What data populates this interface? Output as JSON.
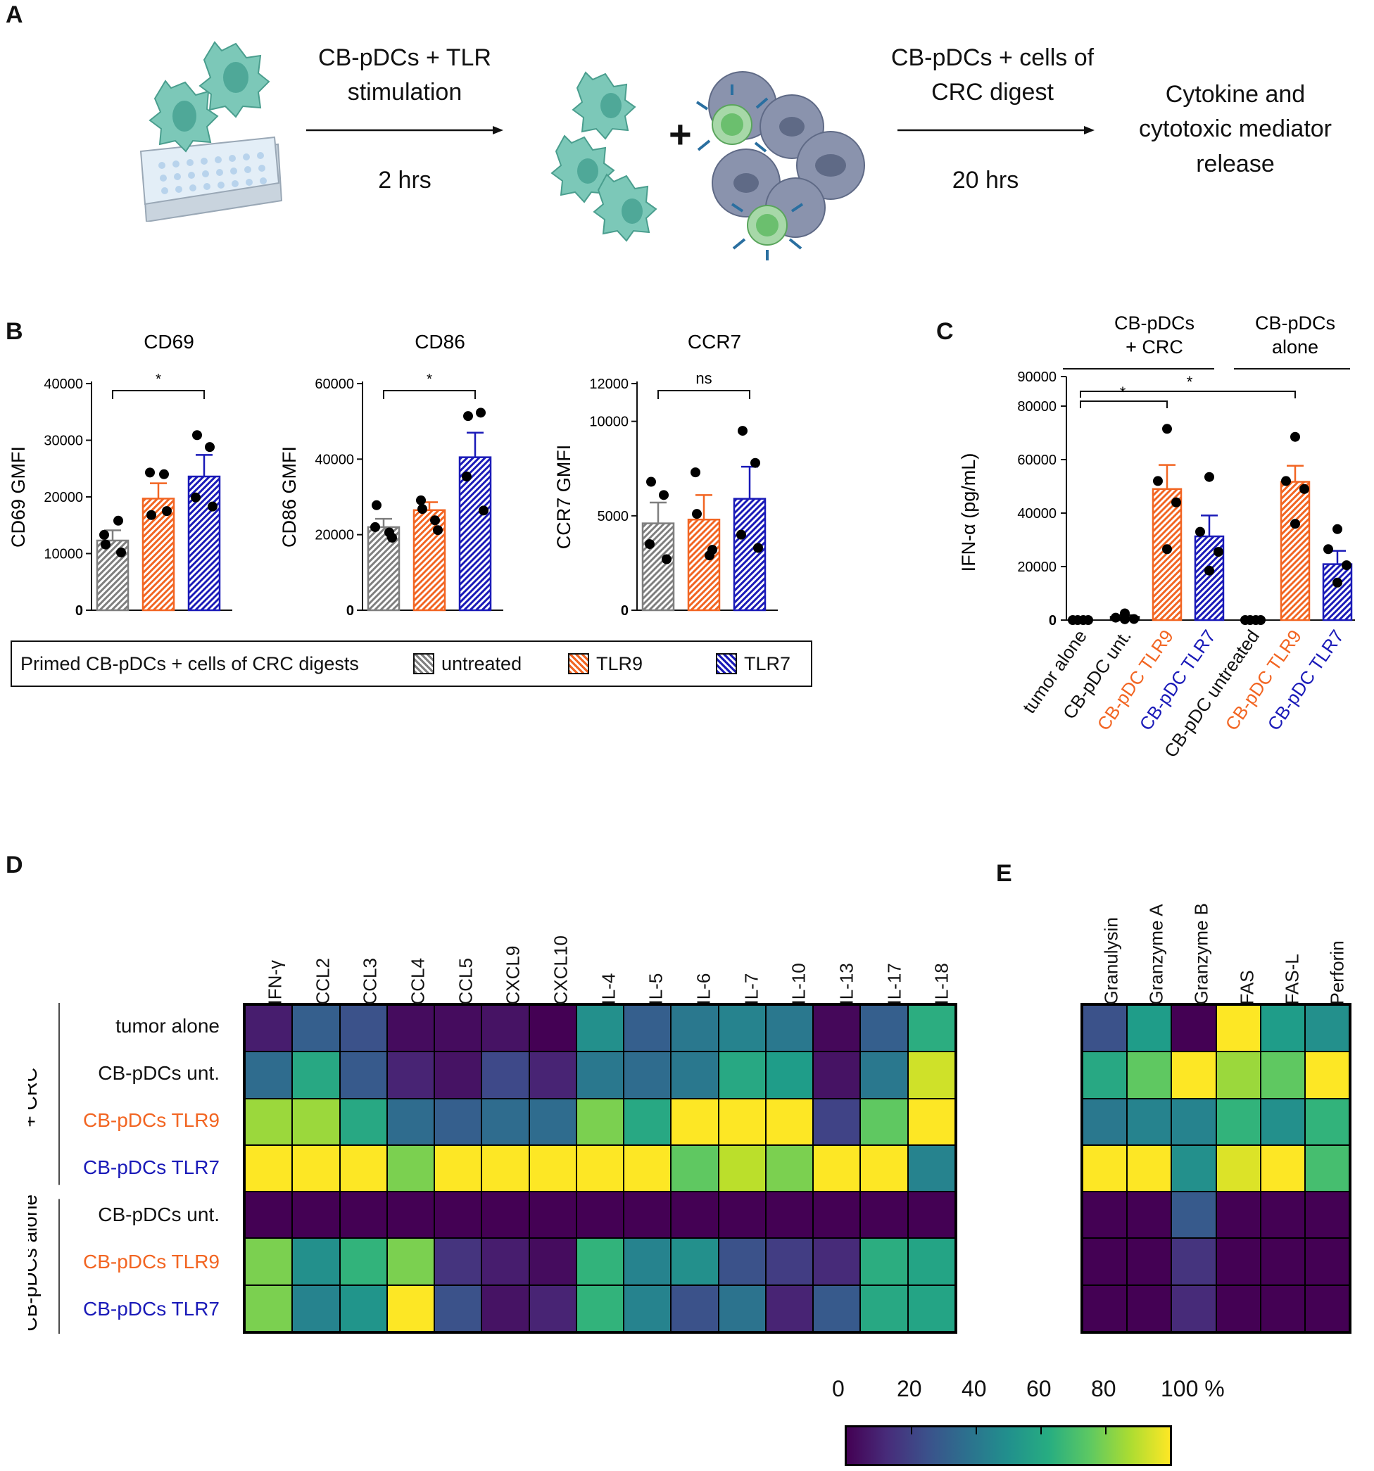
{
  "panels": {
    "a": "A",
    "b": "B",
    "c": "C",
    "d": "D",
    "e": "E"
  },
  "colors": {
    "untreated": "#7f7f7f",
    "tlr9": "#f26522",
    "tlr7": "#1a1ab8"
  },
  "flow": {
    "step1_label": "CB-pDCs + TLR stimulation",
    "step1_time": "2 hrs",
    "step2_label": "CB-pDCs + cells of CRC digest",
    "step2_time": "20 hrs",
    "result": "Cytokine and cytotoxic mediator release",
    "plus": "+"
  },
  "chart_data": [
    {
      "id": "cd69",
      "type": "bar",
      "title": "CD69",
      "ylabel": "CD69 GMFI",
      "categories": [
        "untreated",
        "TLR9",
        "TLR7"
      ],
      "values": [
        12300,
        19700,
        23600
      ],
      "errors": [
        1800,
        2700,
        3800
      ],
      "points": [
        [
          11600,
          15800,
          13300,
          10200
        ],
        [
          16800,
          24000,
          24300,
          17500
        ],
        [
          30900,
          28800,
          19900,
          18300
        ]
      ],
      "ylim": [
        0,
        40000
      ],
      "yticks": [
        "0",
        "10000",
        "20000",
        "30000",
        "40000"
      ],
      "significance": {
        "from": 0,
        "to": 2,
        "label": "*"
      }
    },
    {
      "id": "cd86",
      "type": "bar",
      "title": "CD86",
      "ylabel": "CD86 GMFI",
      "categories": [
        "untreated",
        "TLR9",
        "TLR7"
      ],
      "values": [
        22000,
        26500,
        40500
      ],
      "errors": [
        2200,
        2100,
        6500
      ],
      "points": [
        [
          27800,
          20600,
          22000,
          19200
        ],
        [
          26800,
          23800,
          29100,
          21200
        ],
        [
          51400,
          52300,
          35400,
          26400
        ]
      ],
      "ylim": [
        0,
        60000
      ],
      "yticks": [
        "0",
        "20000",
        "40000",
        "60000"
      ],
      "significance": {
        "from": 0,
        "to": 2,
        "label": "*"
      }
    },
    {
      "id": "ccr7",
      "type": "bar",
      "title": "CCR7",
      "ylabel": "CCR7 GMFI",
      "categories": [
        "untreated",
        "TLR9",
        "TLR7"
      ],
      "values": [
        4600,
        4800,
        5900
      ],
      "errors": [
        1100,
        1300,
        1700
      ],
      "points": [
        [
          6800,
          6100,
          3500,
          2700
        ],
        [
          5100,
          2900,
          7300,
          3200
        ],
        [
          9500,
          7800,
          4000,
          3300
        ]
      ],
      "ylim": [
        0,
        12000
      ],
      "yticks": [
        "0",
        "5000",
        "10000",
        "12000"
      ],
      "significance": {
        "from": 0,
        "to": 2,
        "label": "ns"
      }
    },
    {
      "id": "ifna",
      "type": "bar",
      "title": "",
      "ylabel": "IFN-α (pg/mL)",
      "categories": [
        "tumor alone",
        "CB-pDC unt.",
        "CB-pDC TLR9",
        "CB-pDC TLR7",
        "CB-pDC untreated",
        "CB-pDC TLR9",
        "CB-pDC TLR7"
      ],
      "category_colors": [
        "#111111",
        "#111111",
        "#f26522",
        "#1a1ab8",
        "#111111",
        "#f26522",
        "#1a1ab8"
      ],
      "values": [
        0,
        1200,
        49000,
        31300,
        0,
        51700,
        20900
      ],
      "errors": [
        0,
        600,
        9000,
        7800,
        0,
        6000,
        5000
      ],
      "points": [
        [
          0,
          0,
          0,
          0
        ],
        [
          2500,
          900,
          400,
          300
        ],
        [
          71500,
          52000,
          44000,
          26500
        ],
        [
          53500,
          33000,
          25500,
          18500
        ],
        [
          0,
          0,
          0,
          0
        ],
        [
          68500,
          52000,
          49000,
          36000
        ],
        [
          34000,
          26500,
          20500,
          14000
        ]
      ],
      "ylim": [
        0,
        90000
      ],
      "yticks": [
        "0",
        "20000",
        "40000",
        "60000",
        "80000",
        "90000"
      ],
      "groups": [
        "CB-pDCs + CRC",
        "CB-pDCs alone"
      ],
      "significance": [
        {
          "from": 0,
          "to": 2,
          "label": "*"
        },
        {
          "from": 0,
          "to": 5,
          "label": "*"
        }
      ]
    },
    {
      "id": "cytokine_heatmap",
      "type": "heatmap",
      "columns": [
        "IFN-γ",
        "CCL2",
        "CCL3",
        "CCL4",
        "CCL5",
        "CXCL9",
        "CXCL10",
        "IL-4",
        "IL-5",
        "IL-6",
        "IL-7",
        "IL-10",
        "IL-13",
        "IL-17",
        "IL-18"
      ],
      "rows": [
        "tumor alone",
        "CB-pDCs unt.",
        "CB-pDCs TLR9",
        "CB-pDCs TLR7",
        "CB-pDCs unt.",
        "CB-pDCs TLR9",
        "CB-pDCs TLR7"
      ],
      "values": [
        [
          8,
          30,
          25,
          3,
          3,
          5,
          0,
          50,
          30,
          40,
          45,
          40,
          2,
          30,
          62
        ],
        [
          35,
          60,
          28,
          10,
          5,
          22,
          10,
          40,
          35,
          40,
          60,
          55,
          5,
          40,
          93
        ],
        [
          85,
          85,
          60,
          35,
          30,
          35,
          35,
          80,
          60,
          100,
          100,
          100,
          20,
          75,
          100
        ],
        [
          100,
          100,
          100,
          80,
          100,
          100,
          100,
          100,
          100,
          75,
          90,
          80,
          100,
          100,
          45
        ],
        [
          0,
          0,
          0,
          0,
          0,
          0,
          0,
          0,
          0,
          0,
          0,
          0,
          0,
          0,
          0
        ],
        [
          80,
          50,
          65,
          80,
          15,
          8,
          3,
          65,
          45,
          50,
          25,
          18,
          12,
          62,
          58
        ],
        [
          80,
          45,
          52,
          100,
          25,
          5,
          10,
          65,
          45,
          25,
          38,
          10,
          28,
          60,
          58
        ]
      ],
      "row_groups": [
        "+ CRC",
        "CB-pDCs alone"
      ],
      "row_colors": [
        "#111111",
        "#111111",
        "#f26522",
        "#1a1ab8",
        "#111111",
        "#f26522",
        "#1a1ab8"
      ]
    },
    {
      "id": "cytotoxic_heatmap",
      "type": "heatmap",
      "columns": [
        "Granulysin",
        "Granzyme A",
        "Granzyme B",
        "FAS",
        "FAS-L",
        "Perforin"
      ],
      "values": [
        [
          25,
          55,
          0,
          100,
          55,
          50
        ],
        [
          60,
          75,
          100,
          85,
          75,
          100
        ],
        [
          40,
          45,
          45,
          65,
          50,
          65
        ],
        [
          100,
          100,
          50,
          95,
          100,
          70
        ],
        [
          0,
          0,
          28,
          0,
          0,
          0
        ],
        [
          0,
          0,
          15,
          0,
          0,
          0
        ],
        [
          0,
          0,
          12,
          0,
          0,
          0
        ]
      ]
    }
  ],
  "legend": {
    "title": "Primed CB-pDCs +  cells of CRC digests",
    "items": [
      "untreated",
      "TLR9",
      "TLR7"
    ]
  },
  "colorbar": {
    "ticks": [
      "0",
      "20",
      "40",
      "60",
      "80",
      "100 %"
    ],
    "range": [
      0,
      100
    ]
  }
}
